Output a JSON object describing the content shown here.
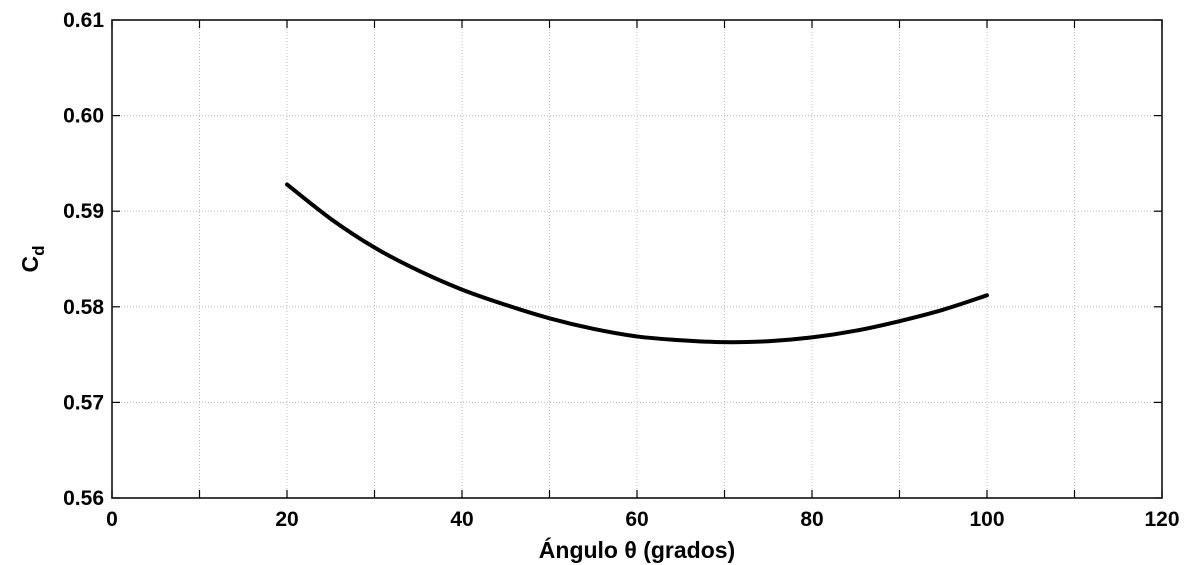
{
  "chart_data": {
    "type": "line",
    "title": "",
    "xlabel": "Ángulo θ (grados)",
    "ylabel_main": "C",
    "ylabel_sub": "d",
    "xlim": [
      0,
      120
    ],
    "ylim": [
      0.56,
      0.61
    ],
    "xticks": [
      0,
      20,
      40,
      60,
      80,
      100,
      120
    ],
    "xtick_labels": [
      "0",
      "20",
      "40",
      "60",
      "80",
      "100",
      "120"
    ],
    "xgrid": [
      0,
      10,
      20,
      30,
      40,
      50,
      60,
      70,
      80,
      90,
      100,
      110,
      120
    ],
    "yticks": [
      0.56,
      0.57,
      0.58,
      0.59,
      0.6,
      0.61
    ],
    "ytick_labels": [
      "0.56",
      "0.57",
      "0.58",
      "0.59",
      "0.60",
      "0.61"
    ],
    "grid": true,
    "legend": "none",
    "series": [
      {
        "color": "#000000",
        "x": [
          20,
          25,
          30,
          35,
          40,
          45,
          50,
          55,
          60,
          65,
          70,
          75,
          80,
          85,
          90,
          95,
          100
        ],
        "y": [
          0.5928,
          0.5892,
          0.5862,
          0.5838,
          0.5818,
          0.5802,
          0.5788,
          0.5777,
          0.5769,
          0.5765,
          0.5763,
          0.5764,
          0.5768,
          0.5775,
          0.5785,
          0.5797,
          0.5812
        ]
      }
    ]
  }
}
